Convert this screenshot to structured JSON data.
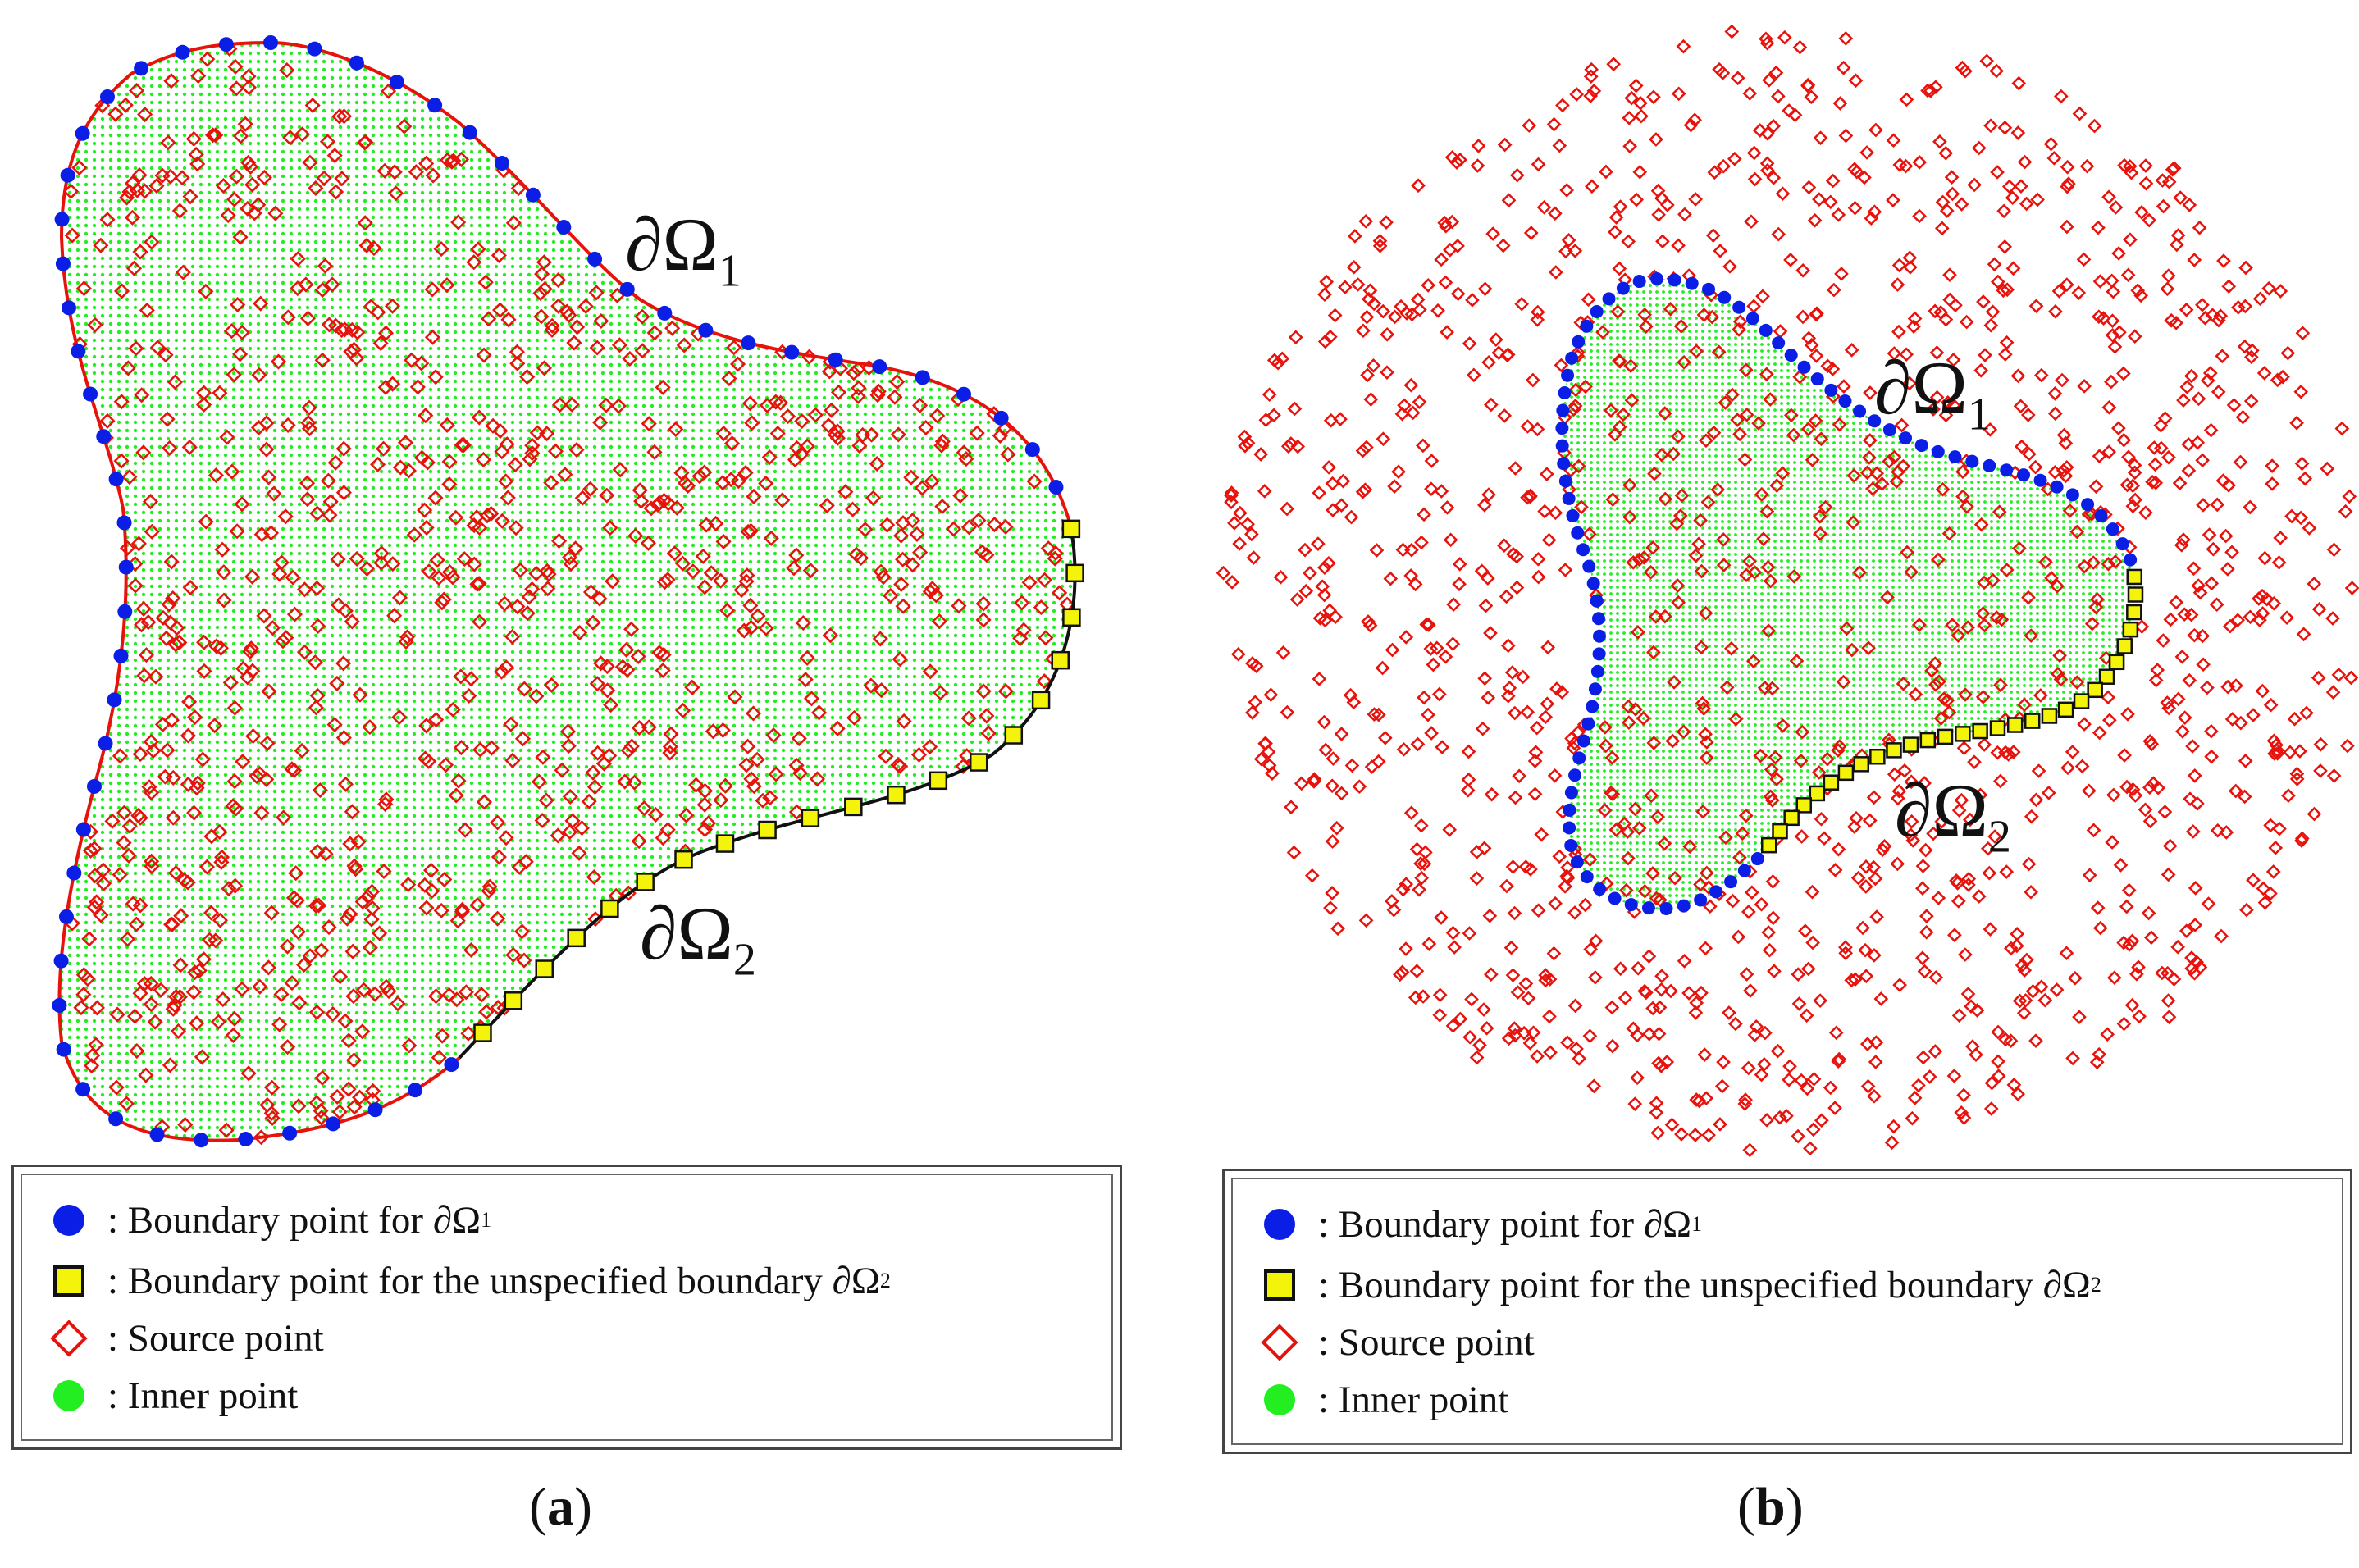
{
  "panels": [
    {
      "id": "a",
      "caption": "a",
      "label_omega1": "∂Ω",
      "label_omega1_sub": "1",
      "label_omega2": "∂Ω",
      "label_omega2_sub": "2",
      "legend": [
        {
          "symbol": "blue-circle",
          "text": ": Boundary point for ∂Ω",
          "sub": "1"
        },
        {
          "symbol": "yellow-square",
          "text": ": Boundary point for the unspecified boundary ∂Ω",
          "sub": "2"
        },
        {
          "symbol": "red-diamond",
          "text": ": Source point",
          "sub": ""
        },
        {
          "symbol": "green-circle",
          "text": ": Inner point",
          "sub": ""
        }
      ]
    },
    {
      "id": "b",
      "caption": "b",
      "label_omega1": "∂Ω",
      "label_omega1_sub": "1",
      "label_omega2": "∂Ω",
      "label_omega2_sub": "2",
      "legend": [
        {
          "symbol": "blue-circle",
          "text": ": Boundary point for ∂Ω",
          "sub": "1"
        },
        {
          "symbol": "yellow-square",
          "text": ": Boundary point for the unspecified boundary ∂Ω",
          "sub": "2"
        },
        {
          "symbol": "red-diamond",
          "text": ": Source point",
          "sub": ""
        },
        {
          "symbol": "green-circle",
          "text": ": Inner point",
          "sub": ""
        }
      ]
    }
  ],
  "colors": {
    "boundary_omega1": "#0a1ee6",
    "boundary_omega2": "#f4f40a",
    "source_point": "#e8120c",
    "inner_point": "#22ee22",
    "curve_omega1": "#e8120c",
    "curve_omega2": "#111111"
  }
}
